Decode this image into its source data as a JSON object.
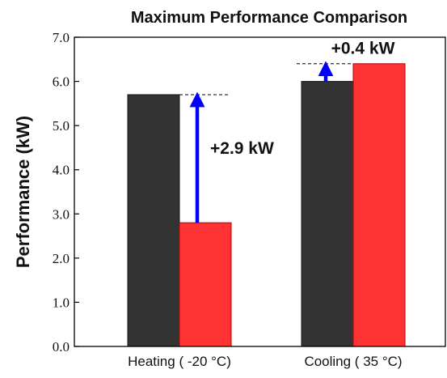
{
  "chart_data": {
    "type": "bar",
    "title": "Maximum Performance Comparison",
    "xlabel": "",
    "ylabel": "Performance (kW)",
    "ylim": [
      0,
      7
    ],
    "yticks": [
      "0.0",
      "1.0",
      "2.0",
      "3.0",
      "4.0",
      "5.0",
      "6.0",
      "7.0"
    ],
    "categories": [
      "Heating ( -20 °C)",
      "Cooling ( 35 °C)"
    ],
    "series": [
      {
        "values": [
          5.7,
          6.0
        ],
        "color": "#333333"
      },
      {
        "values": [
          2.8,
          6.4
        ],
        "color": "#ff3333"
      }
    ],
    "annotations": [
      {
        "category": "Heating ( -20 °C)",
        "text": "+2.9 kW",
        "from": 2.8,
        "to": 5.7
      },
      {
        "category": "Cooling ( 35 °C)",
        "text": "+0.4 kW",
        "from": 6.0,
        "to": 6.4
      }
    ],
    "arrow_color": "#0000ff",
    "grid": false
  }
}
